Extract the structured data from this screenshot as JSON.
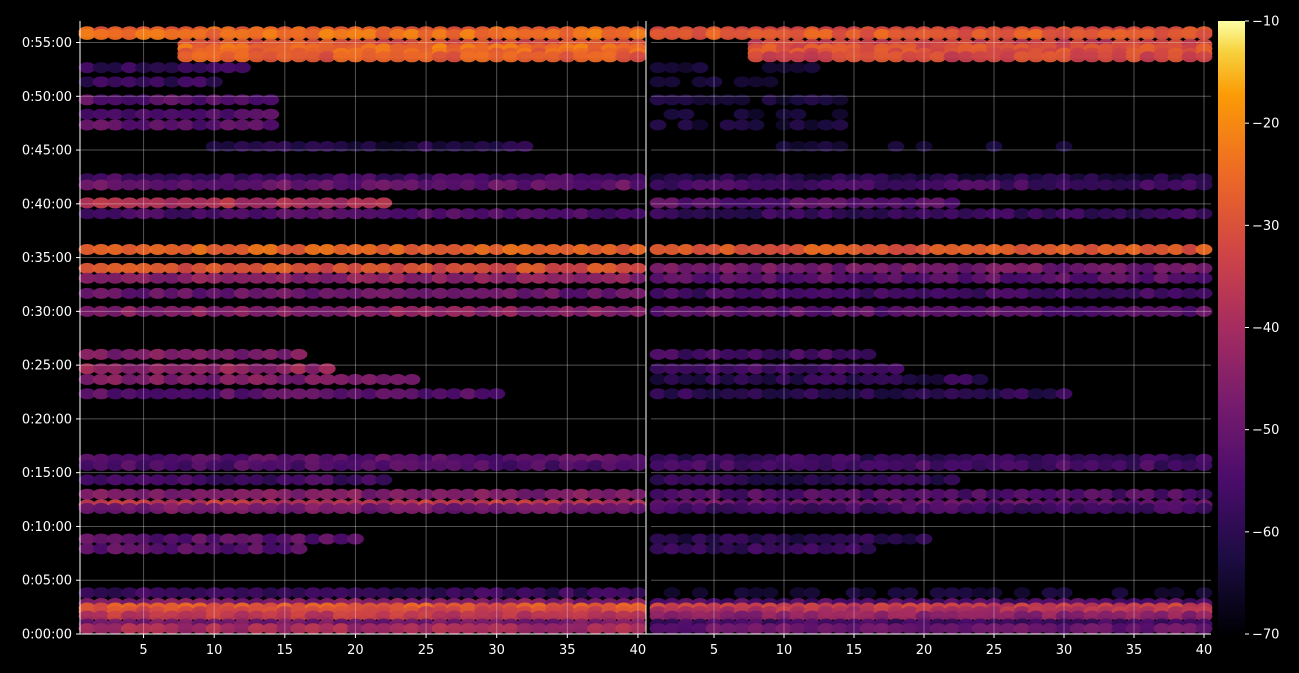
{
  "chart_data": {
    "type": "heatmap",
    "title": "",
    "xlabel": "",
    "ylabel": "",
    "grid": true,
    "colormap": "inferno",
    "panels": [
      {
        "name": "",
        "xlim": [
          1,
          40
        ],
        "x_ticks": [
          5,
          10,
          15,
          20,
          25,
          30,
          35,
          40
        ],
        "x_tick_labels": [
          "5",
          "10",
          "15",
          "20",
          "25",
          "30",
          "35",
          "40"
        ]
      },
      {
        "name": "",
        "xlim": [
          1,
          40
        ],
        "x_ticks": [
          5,
          10,
          15,
          20,
          25,
          30,
          35,
          40
        ],
        "x_tick_labels": [
          "5",
          "10",
          "15",
          "20",
          "25",
          "30",
          "35",
          "40"
        ]
      }
    ],
    "y_range_seconds": [
      0,
      3420
    ],
    "y_ticks": [
      {
        "seconds": 0,
        "label": "0:00:00"
      },
      {
        "seconds": 300,
        "label": "0:05:00"
      },
      {
        "seconds": 600,
        "label": "0:10:00"
      },
      {
        "seconds": 900,
        "label": "0:15:00"
      },
      {
        "seconds": 1200,
        "label": "0:20:00"
      },
      {
        "seconds": 1500,
        "label": "0:25:00"
      },
      {
        "seconds": 1800,
        "label": "0:30:00"
      },
      {
        "seconds": 2100,
        "label": "0:35:00"
      },
      {
        "seconds": 2400,
        "label": "0:40:00"
      },
      {
        "seconds": 2700,
        "label": "0:45:00"
      },
      {
        "seconds": 3000,
        "label": "0:50:00"
      },
      {
        "seconds": 3300,
        "label": "0:55:00"
      }
    ],
    "colorbar": {
      "range": [
        -70,
        -10
      ],
      "ticks": [
        -10,
        -20,
        -30,
        -40,
        -50,
        -60,
        -70
      ],
      "tick_labels": [
        "−10",
        "−20",
        "−30",
        "−40",
        "−50",
        "−60",
        "−70"
      ]
    },
    "bands": [
      {
        "t": 3360,
        "p1": -27,
        "p2": -30,
        "x_from": 1
      },
      {
        "t": 3345,
        "p1": -24,
        "p2": -28,
        "x_from": 1
      },
      {
        "t": 3290,
        "p1": -30,
        "p2": -34,
        "x_from": 8
      },
      {
        "t": 3265,
        "p1": -24,
        "p2": -30,
        "x_from": 8
      },
      {
        "t": 3240,
        "p1": -26,
        "p2": -30,
        "x_from": 8
      },
      {
        "t": 3220,
        "p1": -28,
        "p2": -32,
        "x_from": 8
      },
      {
        "t": 3160,
        "p1": -58,
        "p2": -66,
        "x_from": 1,
        "x_to": 12
      },
      {
        "t": 3080,
        "p1": -58,
        "p2": -66,
        "x_from": 1,
        "x_to": 10
      },
      {
        "t": 2980,
        "p1": -52,
        "p2": -64,
        "x_from": 1,
        "x_to": 14
      },
      {
        "t": 2900,
        "p1": -54,
        "p2": -66,
        "x_from": 1,
        "x_to": 14
      },
      {
        "t": 2840,
        "p1": -52,
        "p2": -64,
        "x_from": 1,
        "x_to": 14
      },
      {
        "t": 2720,
        "p1": -62,
        "p2": -66,
        "x_from": 10,
        "x_to": 32
      },
      {
        "t": 2540,
        "p1": -56,
        "p2": -62,
        "x_from": 1
      },
      {
        "t": 2505,
        "p1": -50,
        "p2": -56,
        "x_from": 1
      },
      {
        "t": 2405,
        "p1": -38,
        "p2": -52,
        "x_from": 1,
        "x_to": 22
      },
      {
        "t": 2345,
        "p1": -54,
        "p2": -58,
        "x_from": 1
      },
      {
        "t": 2145,
        "p1": -26,
        "p2": -28,
        "x_from": 1
      },
      {
        "t": 2040,
        "p1": -30,
        "p2": -48,
        "x_from": 1
      },
      {
        "t": 1985,
        "p1": -44,
        "p2": -52,
        "x_from": 1
      },
      {
        "t": 1900,
        "p1": -50,
        "p2": -56,
        "x_from": 1
      },
      {
        "t": 1800,
        "p1": -44,
        "p2": -52,
        "x_from": 1
      },
      {
        "t": 1560,
        "p1": -46,
        "p2": -56,
        "x_from": 1,
        "x_to": 16
      },
      {
        "t": 1480,
        "p1": -42,
        "p2": -56,
        "x_from": 1,
        "x_to": 18
      },
      {
        "t": 1420,
        "p1": -46,
        "p2": -60,
        "x_from": 1,
        "x_to": 24
      },
      {
        "t": 1340,
        "p1": -52,
        "p2": -60,
        "x_from": 1,
        "x_to": 30
      },
      {
        "t": 975,
        "p1": -52,
        "p2": -58,
        "x_from": 1
      },
      {
        "t": 940,
        "p1": -54,
        "p2": -56,
        "x_from": 1
      },
      {
        "t": 860,
        "p1": -56,
        "p2": -60,
        "x_from": 1,
        "x_to": 22
      },
      {
        "t": 780,
        "p1": -46,
        "p2": -54,
        "x_from": 1
      },
      {
        "t": 720,
        "p1": -36,
        "p2": -50,
        "x_from": 1
      },
      {
        "t": 700,
        "p1": -48,
        "p2": -56,
        "x_from": 1
      },
      {
        "t": 530,
        "p1": -52,
        "p2": -60,
        "x_from": 1,
        "x_to": 20
      },
      {
        "t": 475,
        "p1": -52,
        "p2": -58,
        "x_from": 1,
        "x_to": 16
      },
      {
        "t": 230,
        "p1": -58,
        "p2": -66,
        "x_from": 1
      },
      {
        "t": 170,
        "p1": -46,
        "p2": -54,
        "x_from": 1
      },
      {
        "t": 145,
        "p1": -28,
        "p2": -34,
        "x_from": 1
      },
      {
        "t": 125,
        "p1": -32,
        "p2": -38,
        "x_from": 1
      },
      {
        "t": 100,
        "p1": -36,
        "p2": -44,
        "x_from": 1
      },
      {
        "t": 55,
        "p1": -48,
        "p2": -56,
        "x_from": 1
      },
      {
        "t": 30,
        "p1": -40,
        "p2": -50,
        "x_from": 1
      }
    ]
  }
}
